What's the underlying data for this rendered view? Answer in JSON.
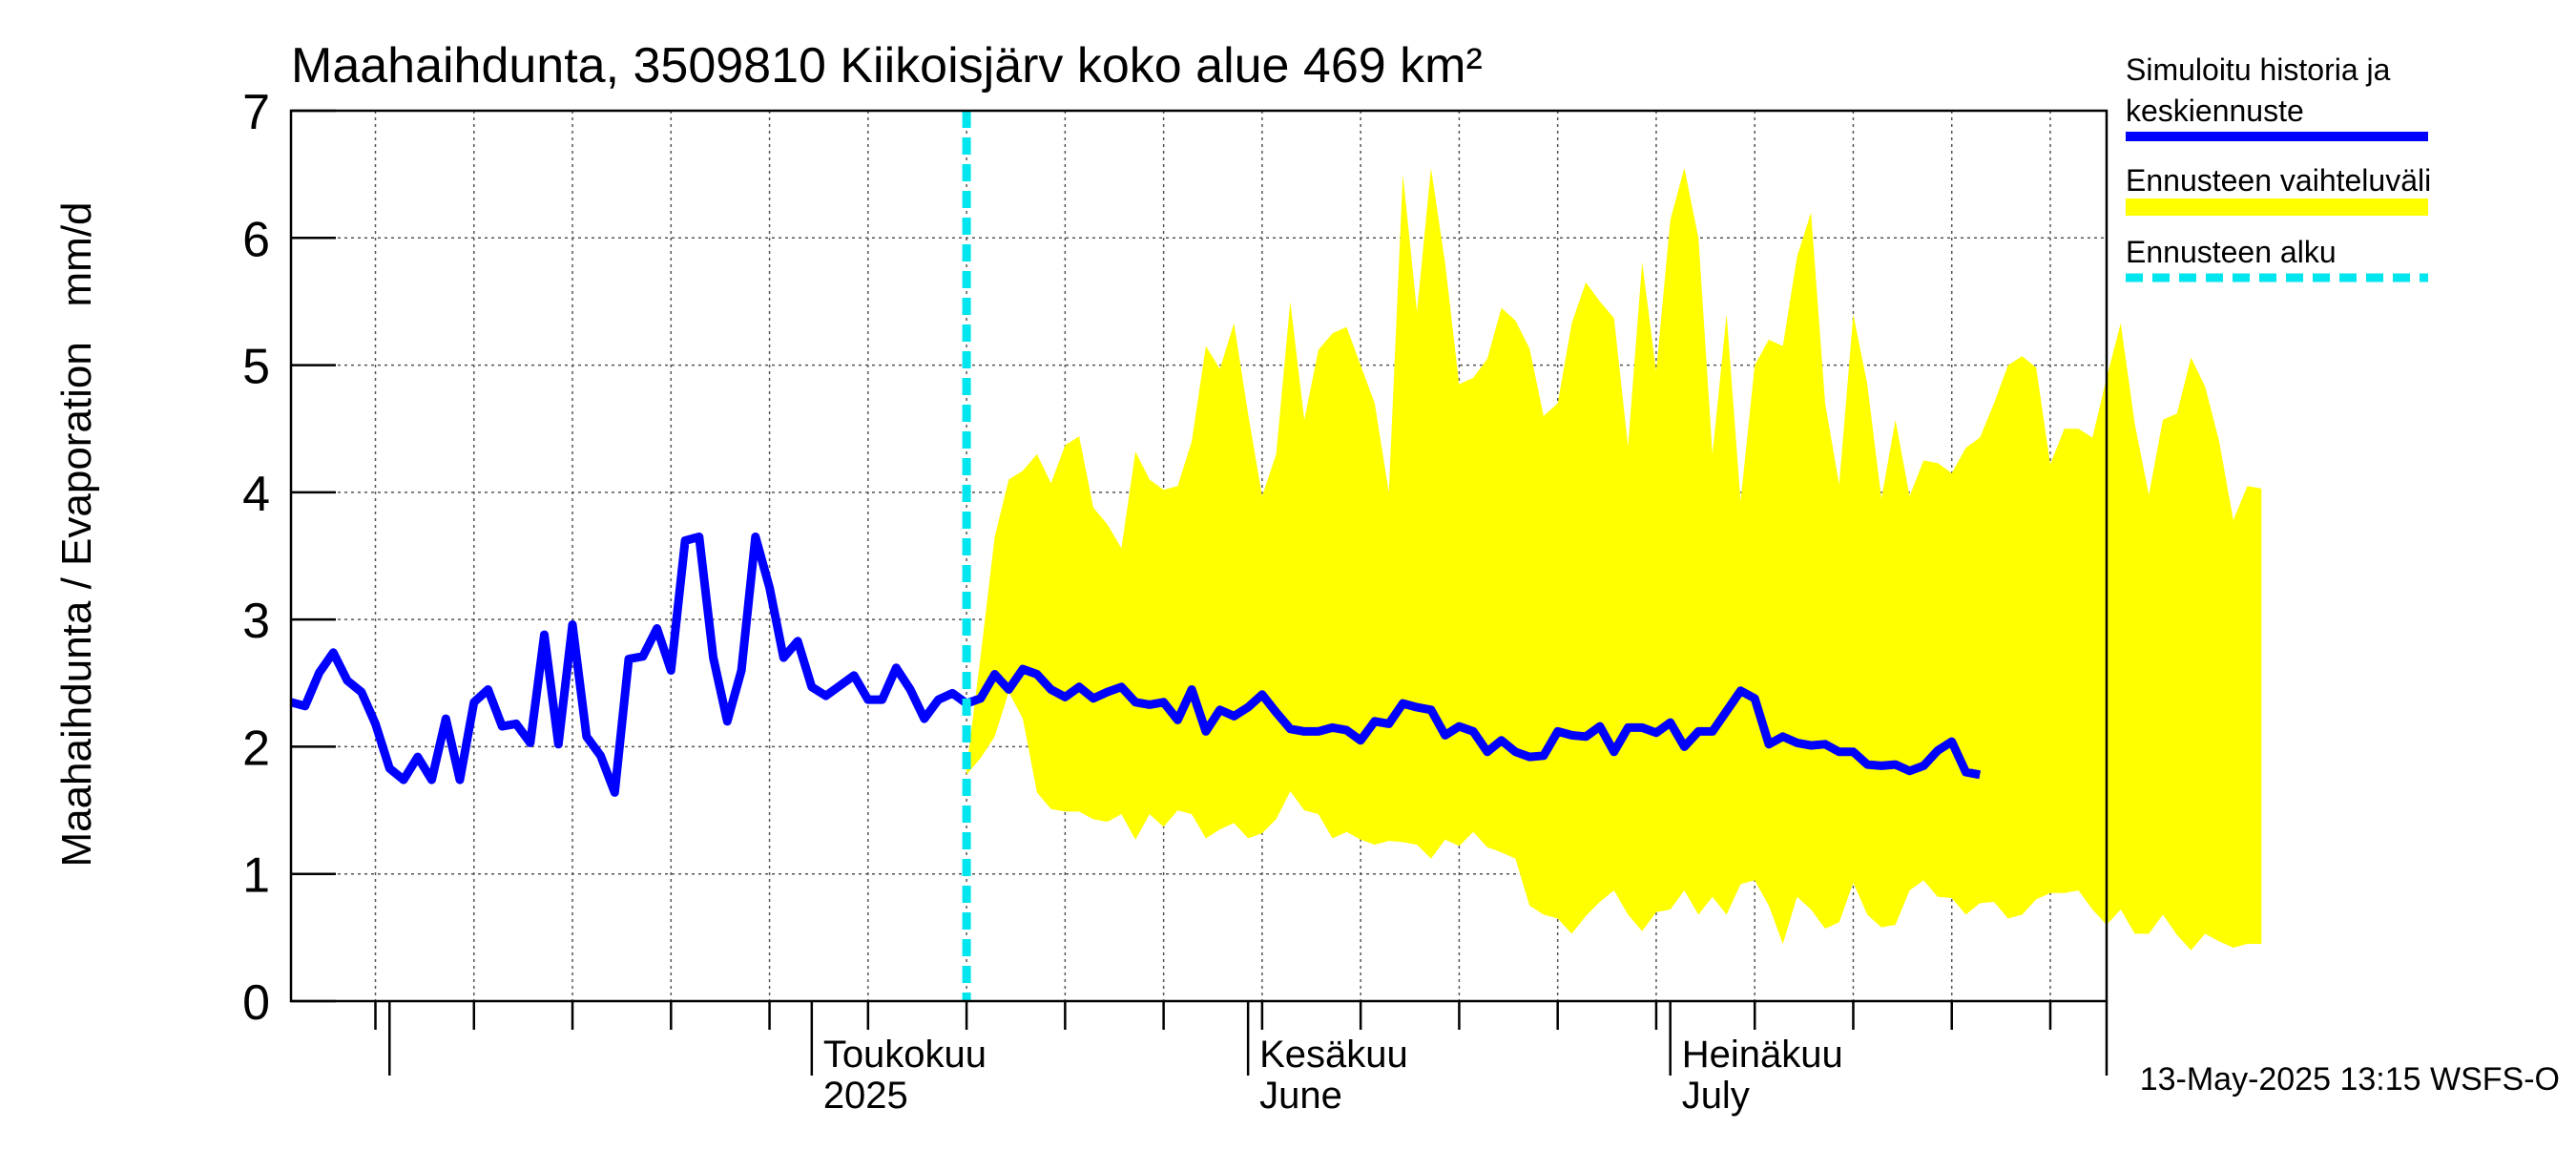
{
  "chart_data": {
    "type": "area",
    "title": "Maahaihdunta, 3509810 Kiikoisjärv koko alue 469 km²",
    "ylabel": "Maahaihdunta / Evaporation   mm/d",
    "ylim": [
      0,
      7
    ],
    "yticks": [
      0,
      1,
      2,
      3,
      4,
      5,
      6,
      7
    ],
    "xlim": [
      "2025-03-25",
      "2025-08-01"
    ],
    "grid": true,
    "month_labels": [
      {
        "date": "2025-05-01",
        "line1": "Toukokuu",
        "line2": "2025"
      },
      {
        "date": "2025-06-01",
        "line1": "Kesäkuu",
        "line2": "June"
      },
      {
        "date": "2025-07-01",
        "line1": "Heinäkuu",
        "line2": "July"
      }
    ],
    "forecast_start": "2025-05-12",
    "legend_position": "right",
    "legend": {
      "history": "Simuloitu historia ja keskiennuste",
      "range": "Ennusteen vaihteluväli",
      "start": "Ennusteen alku"
    },
    "series": [
      {
        "name": "Simuloitu historia ja keskiennuste",
        "color": "#0000ff",
        "start_date": "2025-03-25",
        "values": [
          2.35,
          2.32,
          2.58,
          2.74,
          2.52,
          2.43,
          2.18,
          1.83,
          1.74,
          1.92,
          1.74,
          2.22,
          1.74,
          2.35,
          2.45,
          2.16,
          2.18,
          2.03,
          2.88,
          2.02,
          2.96,
          2.08,
          1.93,
          1.64,
          2.69,
          2.71,
          2.93,
          2.6,
          3.62,
          3.65,
          2.7,
          2.2,
          2.6,
          3.65,
          3.25,
          2.7,
          2.83,
          2.47,
          2.4,
          2.48,
          2.56,
          2.37,
          2.37,
          2.62,
          2.45,
          2.22,
          2.37,
          2.42,
          2.34,
          2.38,
          2.57,
          2.45,
          2.61,
          2.57,
          2.45,
          2.39,
          2.47,
          2.38,
          2.43,
          2.47,
          2.35,
          2.33,
          2.35,
          2.21,
          2.45,
          2.12,
          2.29,
          2.24,
          2.31,
          2.41,
          2.27,
          2.14,
          2.12,
          2.12,
          2.15,
          2.13,
          2.05,
          2.2,
          2.18,
          2.34,
          2.31,
          2.29,
          2.09,
          2.16,
          2.12,
          1.96,
          2.05,
          1.96,
          1.92,
          1.93,
          2.12,
          2.09,
          2.08,
          2.16,
          1.96,
          2.15,
          2.15,
          2.11,
          2.19,
          2.0,
          2.12,
          2.12,
          2.28,
          2.44,
          2.38,
          2.02,
          2.08,
          2.03,
          2.01,
          2.02,
          1.96,
          1.96,
          1.86,
          1.85,
          1.86,
          1.81,
          1.85,
          1.97,
          2.04,
          1.8,
          1.78
        ]
      },
      {
        "name": "Ennusteen vaihteluväli",
        "color": "#ffff00",
        "start_date": "2025-05-12",
        "upper": [
          1.83,
          2.71,
          3.65,
          4.1,
          4.17,
          4.3,
          4.07,
          4.37,
          4.44,
          3.88,
          3.75,
          3.56,
          4.32,
          4.1,
          4.02,
          4.05,
          4.4,
          5.15,
          4.97,
          5.33,
          4.62,
          3.97,
          4.3,
          5.5,
          4.57,
          5.12,
          5.25,
          5.3,
          5.0,
          4.7,
          4.0,
          6.5,
          5.42,
          6.55,
          5.8,
          4.85,
          4.9,
          5.05,
          5.45,
          5.35,
          5.13,
          4.6,
          4.7,
          5.33,
          5.65,
          5.5,
          5.37,
          4.36,
          5.81,
          4.95,
          6.14,
          6.55,
          6.0,
          4.3,
          5.4,
          3.93,
          5.0,
          5.2,
          5.15,
          5.85,
          6.2,
          4.7,
          4.06,
          5.4,
          4.85,
          3.95,
          4.57,
          3.97,
          4.25,
          4.23,
          4.15,
          4.35,
          4.43,
          4.7,
          5.0,
          5.07,
          4.98,
          4.22,
          4.5,
          4.5,
          4.43,
          4.9,
          5.33,
          4.54,
          3.98,
          4.57,
          4.62,
          5.06,
          4.83,
          4.4,
          3.78,
          4.05,
          4.03
        ],
        "lower": [
          1.78,
          1.91,
          2.08,
          2.43,
          2.22,
          1.64,
          1.51,
          1.49,
          1.49,
          1.43,
          1.41,
          1.47,
          1.27,
          1.47,
          1.37,
          1.5,
          1.47,
          1.28,
          1.35,
          1.4,
          1.28,
          1.32,
          1.43,
          1.65,
          1.5,
          1.47,
          1.28,
          1.33,
          1.27,
          1.23,
          1.26,
          1.25,
          1.23,
          1.12,
          1.27,
          1.22,
          1.33,
          1.21,
          1.17,
          1.12,
          0.75,
          0.68,
          0.65,
          0.53,
          0.67,
          0.78,
          0.87,
          0.68,
          0.55,
          0.7,
          0.72,
          0.87,
          0.68,
          0.82,
          0.68,
          0.92,
          0.95,
          0.75,
          0.45,
          0.82,
          0.72,
          0.57,
          0.62,
          0.93,
          0.68,
          0.58,
          0.6,
          0.87,
          0.95,
          0.82,
          0.81,
          0.68,
          0.77,
          0.78,
          0.65,
          0.68,
          0.8,
          0.85,
          0.85,
          0.87,
          0.72,
          0.6,
          0.72,
          0.53,
          0.53,
          0.68,
          0.52,
          0.4,
          0.53,
          0.47,
          0.42,
          0.45,
          0.45
        ]
      }
    ]
  },
  "footer": {
    "timestamp": "13-May-2025 13:15 WSFS-O"
  }
}
